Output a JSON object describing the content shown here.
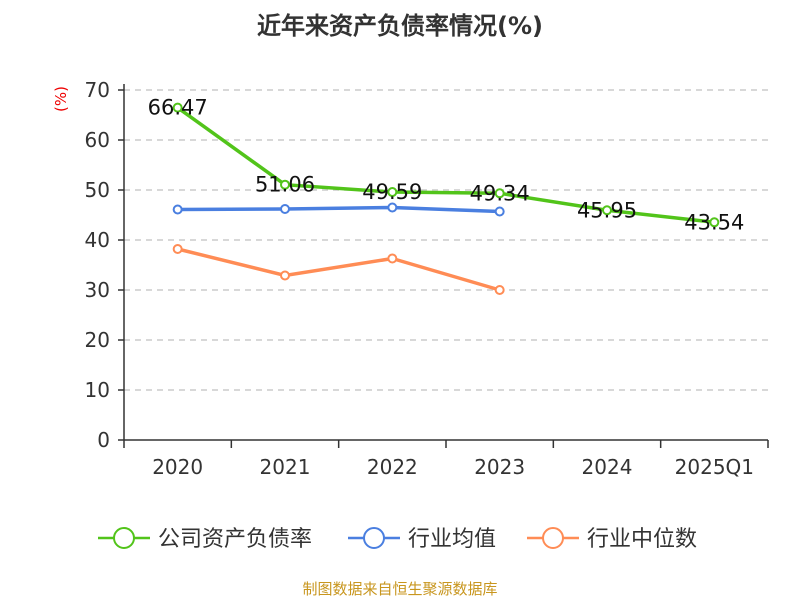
{
  "chart_data": {
    "type": "line",
    "title": "近年来资产负债率情况(%)",
    "ylabel": "(%)",
    "xlabel": "",
    "categories": [
      "2020",
      "2021",
      "2022",
      "2023",
      "2024",
      "2025Q1"
    ],
    "ylim": [
      0,
      70
    ],
    "yticks": [
      "0",
      "10",
      "20",
      "30",
      "40",
      "50",
      "60",
      "70"
    ],
    "grid": true,
    "legend_position": "bottom",
    "series": [
      {
        "name": "公司资产负债率",
        "color": "#52c41a",
        "values": [
          66.47,
          51.06,
          49.59,
          49.34,
          45.95,
          43.54
        ],
        "labels": [
          "66.47",
          "51.06",
          "49.59",
          "49.34",
          "45.95",
          "43.54"
        ]
      },
      {
        "name": "行业均值",
        "color": "#4a7fe0",
        "values": [
          46.1,
          46.2,
          46.5,
          45.7,
          null,
          null
        ]
      },
      {
        "name": "行业中位数",
        "color": "#ff8c55",
        "values": [
          38.2,
          32.9,
          36.3,
          30.0,
          null,
          null
        ]
      }
    ]
  },
  "source": "制图数据来自恒生聚源数据库"
}
